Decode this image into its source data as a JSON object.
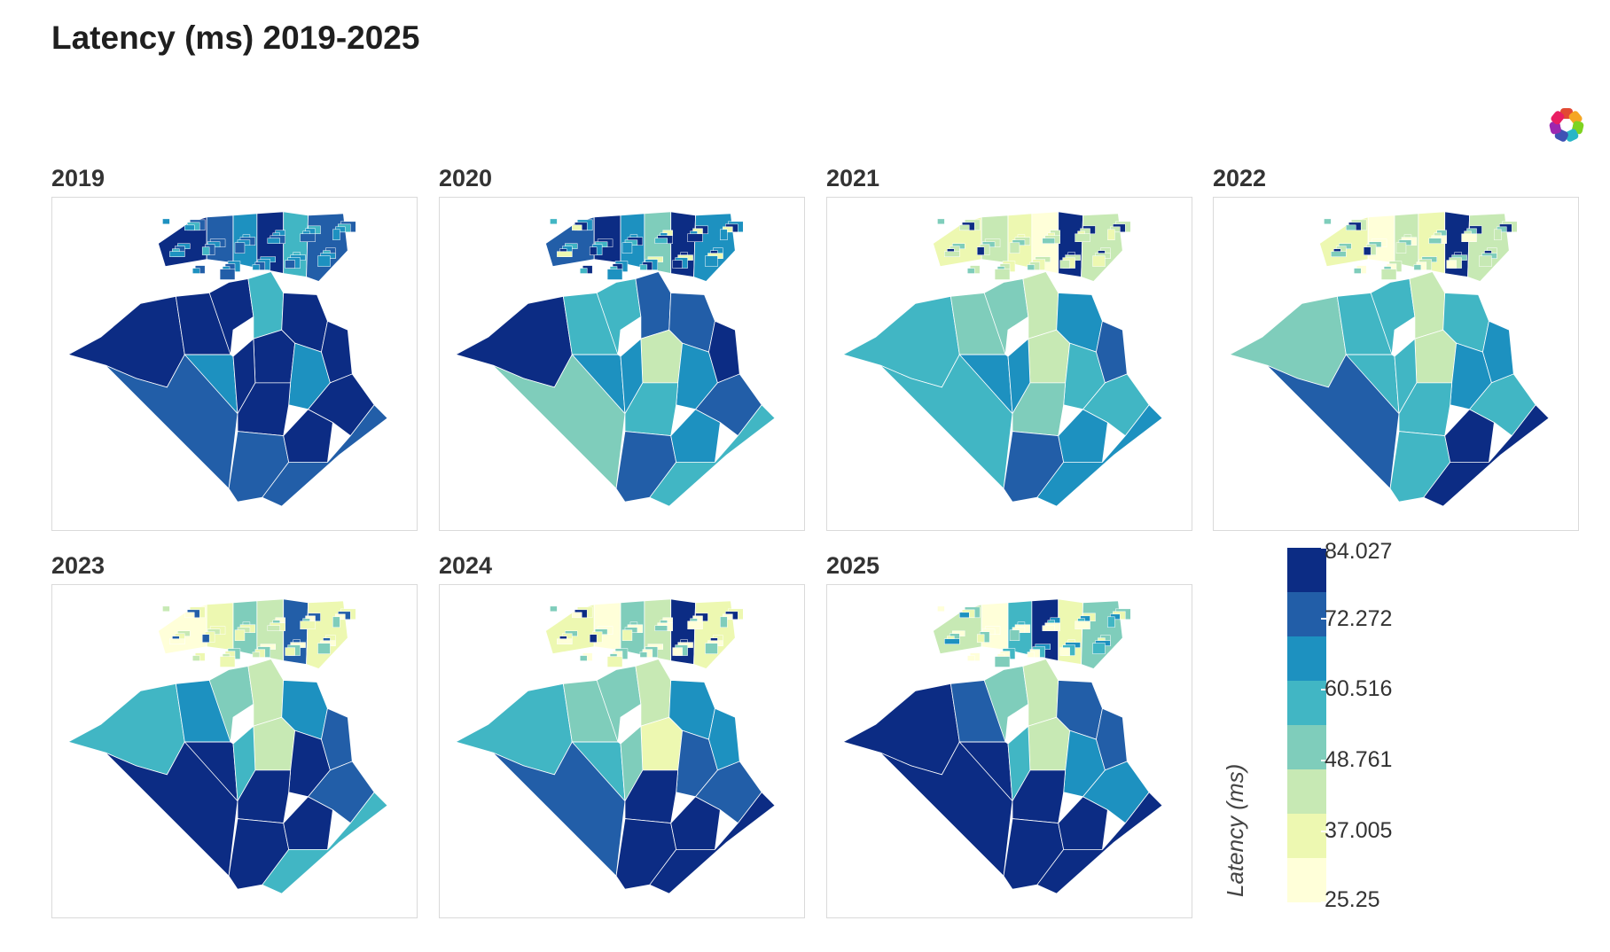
{
  "title": "Latency (ms) 2019-2025",
  "logo_icon": "plotly-logo-icon",
  "colors": {
    "scale": [
      "#ffffd9",
      "#edf8b1",
      "#c7e9b4",
      "#7fcdbb",
      "#41b6c4",
      "#1d91c0",
      "#225ea8",
      "#0c2c84"
    ],
    "missing": "#efefef",
    "border": "#ffffff",
    "panel_border": "#dadada"
  },
  "panels": [
    {
      "year": "2019",
      "fill": [
        7,
        7,
        6,
        5,
        7,
        4,
        7,
        7,
        7,
        5,
        7,
        6,
        7,
        7,
        7,
        6
      ],
      "north": [
        7,
        6,
        5,
        7,
        4,
        6
      ]
    },
    {
      "year": "2020",
      "fill": [
        7,
        4,
        3,
        5,
        4,
        6,
        2,
        5,
        6,
        5,
        4,
        6,
        5,
        7,
        6,
        4
      ],
      "north": [
        6,
        7,
        5,
        3,
        7,
        5
      ]
    },
    {
      "year": "2021",
      "fill": [
        4,
        3,
        4,
        5,
        3,
        2,
        2,
        5,
        5,
        4,
        3,
        6,
        5,
        6,
        4,
        5
      ],
      "north": [
        1,
        2,
        1,
        0,
        7,
        2
      ]
    },
    {
      "year": "2022",
      "fill": [
        3,
        4,
        6,
        4,
        4,
        2,
        2,
        4,
        4,
        5,
        4,
        4,
        7,
        5,
        4,
        7
      ],
      "north": [
        1,
        0,
        2,
        1,
        7,
        2
      ]
    },
    {
      "year": "2023",
      "fill": [
        4,
        5,
        7,
        7,
        3,
        2,
        2,
        4,
        5,
        7,
        7,
        7,
        7,
        6,
        6,
        4
      ],
      "north": [
        0,
        1,
        3,
        2,
        6,
        1
      ]
    },
    {
      "year": "2024",
      "fill": [
        4,
        3,
        6,
        4,
        3,
        2,
        1,
        3,
        5,
        6,
        7,
        7,
        7,
        5,
        6,
        7
      ],
      "north": [
        1,
        0,
        3,
        2,
        7,
        1
      ]
    },
    {
      "year": "2025",
      "fill": [
        7,
        6,
        7,
        7,
        3,
        2,
        2,
        4,
        6,
        5,
        7,
        7,
        7,
        6,
        5,
        7
      ],
      "north": [
        2,
        0,
        4,
        7,
        1,
        3
      ]
    }
  ],
  "colorbar": {
    "title": "Latency (ms)",
    "tick_labels": [
      "84.027",
      "72.272",
      "60.516",
      "48.761",
      "37.005",
      "25.25"
    ],
    "min": 25.25,
    "max": 84.027
  }
}
